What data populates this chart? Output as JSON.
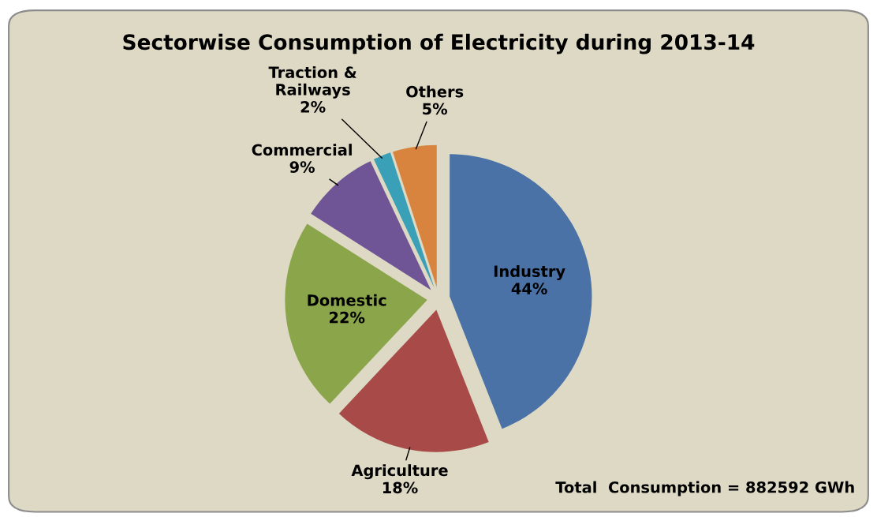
{
  "chart_data": {
    "type": "pie",
    "title": "Sectorwise Consumption of Electricity during 2013-14",
    "categories": [
      "Industry",
      "Agriculture",
      "Domestic",
      "Commercial",
      "Traction &\nRailways",
      "Others"
    ],
    "values": [
      44,
      18,
      22,
      9,
      2,
      5
    ],
    "colors": [
      "#4a72a6",
      "#a84a47",
      "#8aa54a",
      "#6f5496",
      "#3aa0b8",
      "#d8843e"
    ],
    "value_labels": [
      "44%",
      "18%",
      "22%",
      "9%",
      "2%",
      "5%"
    ],
    "annotations": [
      "Total  Consumption = 882592 GWh"
    ]
  }
}
